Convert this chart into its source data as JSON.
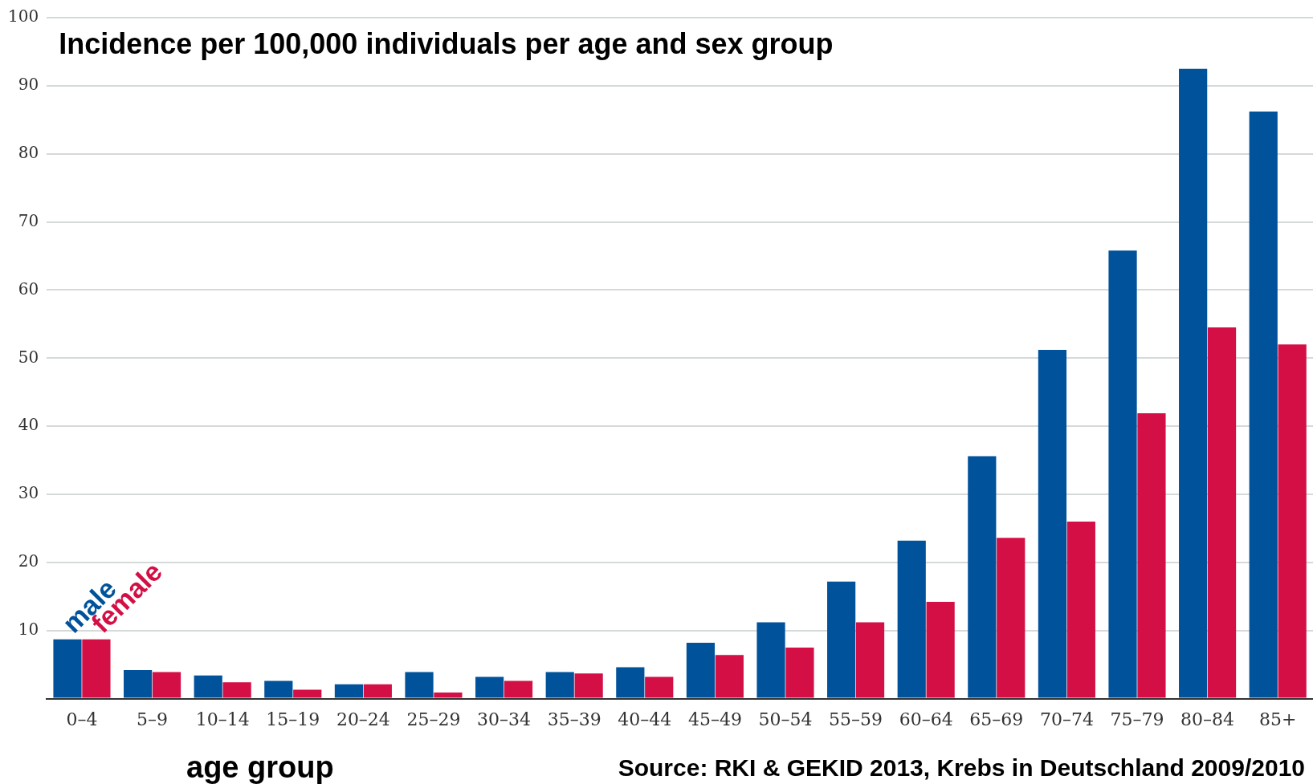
{
  "chart_data": {
    "type": "bar",
    "title": "Incidence per 100,000 individuals per age and sex group",
    "xlabel": "age group",
    "categories": [
      "0–4",
      "5–9",
      "10–14",
      "15–19",
      "20–24",
      "25–29",
      "30–34",
      "35–39",
      "40–44",
      "45–49",
      "50–54",
      "55–59",
      "60–64",
      "65–69",
      "70–74",
      "75–79",
      "80–84",
      "85+"
    ],
    "series": [
      {
        "name": "male",
        "color": "#00529b",
        "values": [
          8.7,
          4.2,
          3.4,
          2.6,
          2.1,
          3.9,
          3.2,
          3.9,
          4.6,
          8.2,
          11.2,
          17.2,
          23.2,
          35.6,
          51.2,
          65.8,
          92.5,
          86.2
        ]
      },
      {
        "name": "female",
        "color": "#d30f45",
        "values": [
          8.7,
          3.9,
          2.4,
          1.3,
          2.1,
          0.9,
          2.6,
          3.7,
          3.2,
          6.4,
          7.5,
          11.2,
          14.2,
          23.6,
          26.0,
          41.9,
          54.5,
          52.0
        ]
      }
    ],
    "ylim": [
      0,
      100
    ],
    "yticks": [
      {
        "value": 0,
        "label": null
      },
      10,
      20,
      30,
      40,
      50,
      60,
      70,
      80,
      90,
      100
    ],
    "grid": "y",
    "annotations": [
      "Source: RKI & GEKID 2013, Krebs in Deutschland 2009/2010"
    ]
  }
}
